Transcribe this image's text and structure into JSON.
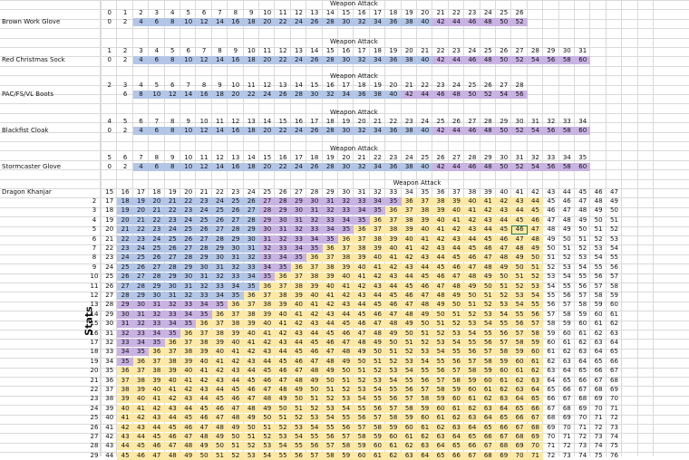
{
  "stats_label": "Stats",
  "header_label": "Weapon Attack",
  "colors": {
    "blue": "#b3c6e7",
    "purple": "#c9b3e3",
    "yellow": "#fde9a5",
    "grid": "#dadada"
  },
  "items": [
    {
      "name": "Brown Work Glove",
      "top_start": 0,
      "bottom_start": 0,
      "bottom_end": 26,
      "blue_end": 20,
      "purple_end": 34
    },
    {
      "name": "Red Christmas Sock",
      "top_start": 1,
      "bottom_start": 0,
      "bottom_end": 30,
      "blue_end": 20,
      "purple_end": 34
    },
    {
      "name": "PAC/FS/VL Boots",
      "top_start": 2,
      "bottom_start": 2,
      "bottom_end": 28,
      "blue_end": 20,
      "purple_end": 34
    },
    {
      "name": "Blackfist Cloak",
      "top_start": 4,
      "bottom_start": 0,
      "bottom_end": 30,
      "blue_end": 20,
      "purple_end": 34
    },
    {
      "name": "Stormcaster Glove",
      "top_start": 5,
      "bottom_start": 0,
      "bottom_end": 30,
      "blue_end": 20,
      "purple_end": 34
    }
  ],
  "khanjar": {
    "name": "Dragon Khanjar",
    "top_row": [
      15,
      16,
      17,
      18,
      19,
      20,
      21,
      22,
      23,
      24,
      25,
      26,
      27,
      28,
      29,
      30,
      31,
      32,
      33,
      34,
      35,
      36,
      37,
      38,
      39,
      40,
      41,
      42,
      43,
      44,
      45,
      46,
      47
    ],
    "stats": [
      2,
      3,
      4,
      5,
      6,
      7,
      8,
      9,
      10,
      11,
      12,
      13,
      14,
      15,
      16,
      17,
      18,
      19,
      20,
      21,
      22,
      23,
      24,
      25,
      26,
      27,
      28,
      29
    ],
    "selected": {
      "stat": 5,
      "col": 26
    }
  }
}
